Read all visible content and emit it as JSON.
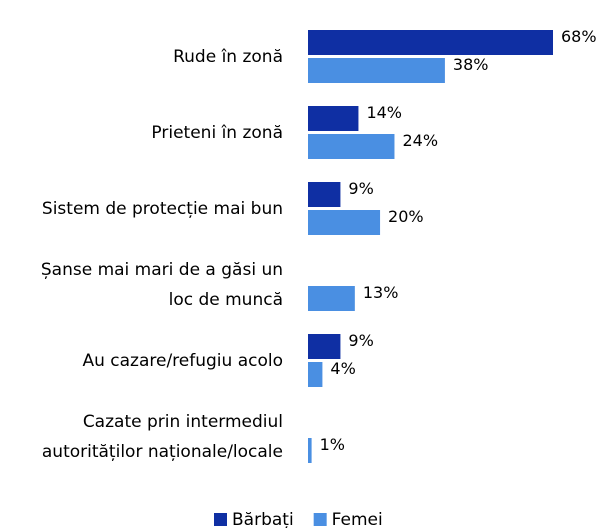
{
  "chart_data": {
    "type": "hbar",
    "categories": [
      "Rude în zonă",
      "Prieteni în zonă",
      "Sistem de protecție mai bun",
      "Șanse mai mari de a găsi un\nloc de muncă",
      "Au cazare/refugiu acolo",
      "Cazate prin intermediul\nautorităților naționale/locale"
    ],
    "series": [
      {
        "name": "Bărbați",
        "color": "#0f2fa3",
        "values": [
          68,
          14,
          9,
          null,
          9,
          null
        ],
        "value_labels": [
          "68%",
          "14%",
          "9%",
          null,
          "9%",
          null
        ]
      },
      {
        "name": "Femei",
        "color": "#4a8fe2",
        "values": [
          38,
          24,
          20,
          13,
          4,
          1
        ],
        "value_labels": [
          "38%",
          "24%",
          "20%",
          "13%",
          "4%",
          "1%"
        ]
      }
    ],
    "legend": "bottom"
  }
}
